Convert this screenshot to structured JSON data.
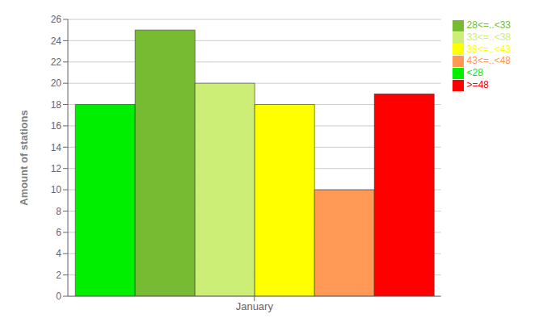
{
  "chart_data": {
    "type": "bar",
    "ylabel": "Amount of stations",
    "categories": [
      "January"
    ],
    "series": [
      {
        "name": "<28",
        "color": "#00ee00",
        "values": [
          18
        ]
      },
      {
        "name": "28<=..<33",
        "color": "#77bb33",
        "values": [
          25
        ]
      },
      {
        "name": "33<=..<38",
        "color": "#ccee77",
        "values": [
          20
        ]
      },
      {
        "name": "38<=..<43",
        "color": "#ffff00",
        "values": [
          18
        ]
      },
      {
        "name": "43<=..<48",
        "color": "#ff9955",
        "values": [
          10
        ]
      },
      {
        "name": ">=48",
        "color": "#ff0000",
        "values": [
          19
        ]
      }
    ],
    "ylim": [
      0,
      26
    ],
    "yticks": [
      0,
      2,
      4,
      6,
      8,
      10,
      12,
      14,
      16,
      18,
      20,
      22,
      24,
      26
    ],
    "grid": true,
    "legend": "upper right"
  }
}
